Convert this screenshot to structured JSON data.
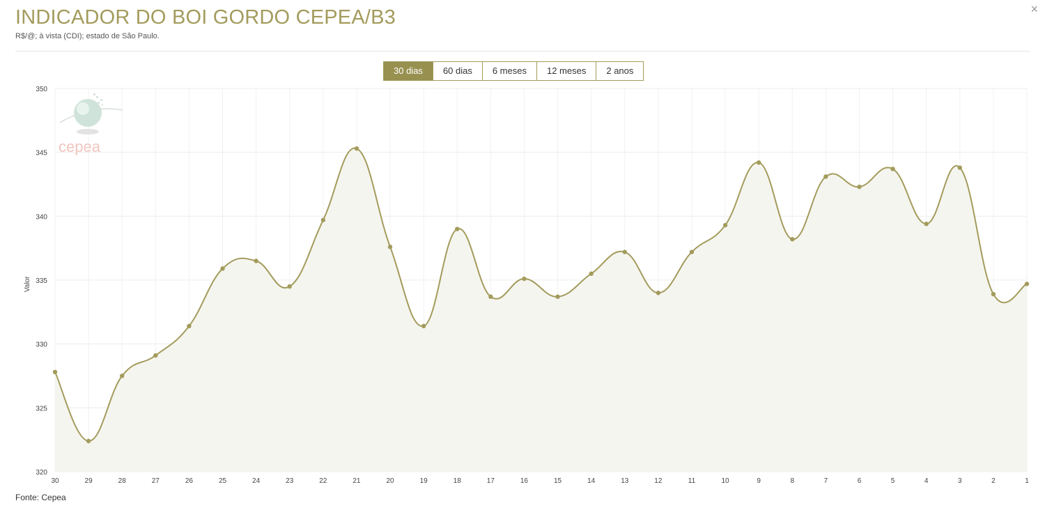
{
  "header": {
    "title": "INDICADOR DO BOI GORDO CEPEA/B3",
    "subtitle": "R$/@; à vista (CDI); estado de São Paulo.",
    "close_glyph": "×"
  },
  "tabs": [
    {
      "label": "30 dias",
      "active": true
    },
    {
      "label": "60 dias",
      "active": false
    },
    {
      "label": "6 meses",
      "active": false
    },
    {
      "label": "12 meses",
      "active": false
    },
    {
      "label": "2 anos",
      "active": false
    }
  ],
  "footer": {
    "source": "Fonte: Cepea"
  },
  "logo": {
    "text": "cepea",
    "icon": "cepea-globe-logo"
  },
  "colors": {
    "accent": "#a39b5c",
    "line": "#a39b5c",
    "area": "#f5f5ef",
    "active_tab": "#97904f",
    "logo_text": "#f2c6c0"
  },
  "chart_data": {
    "type": "area",
    "ylabel": "Valor",
    "xlabel": "",
    "ylim": [
      320,
      350
    ],
    "yticks": [
      320,
      325,
      330,
      335,
      340,
      345,
      350
    ],
    "grid": true,
    "categories": [
      "30",
      "29",
      "28",
      "27",
      "26",
      "25",
      "24",
      "23",
      "22",
      "21",
      "20",
      "19",
      "18",
      "17",
      "16",
      "15",
      "14",
      "13",
      "12",
      "11",
      "10",
      "9",
      "8",
      "7",
      "6",
      "5",
      "4",
      "3",
      "2",
      "1"
    ],
    "series": [
      {
        "values": [
          327.8,
          322.4,
          327.5,
          329.1,
          331.4,
          335.9,
          336.5,
          334.5,
          339.7,
          345.3,
          337.6,
          331.4,
          339.0,
          333.7,
          335.1,
          333.7,
          335.5,
          337.2,
          334.0,
          337.2,
          339.3,
          344.2,
          338.2,
          343.1,
          342.3,
          343.7,
          339.4,
          343.8,
          333.9,
          334.7
        ]
      }
    ]
  }
}
